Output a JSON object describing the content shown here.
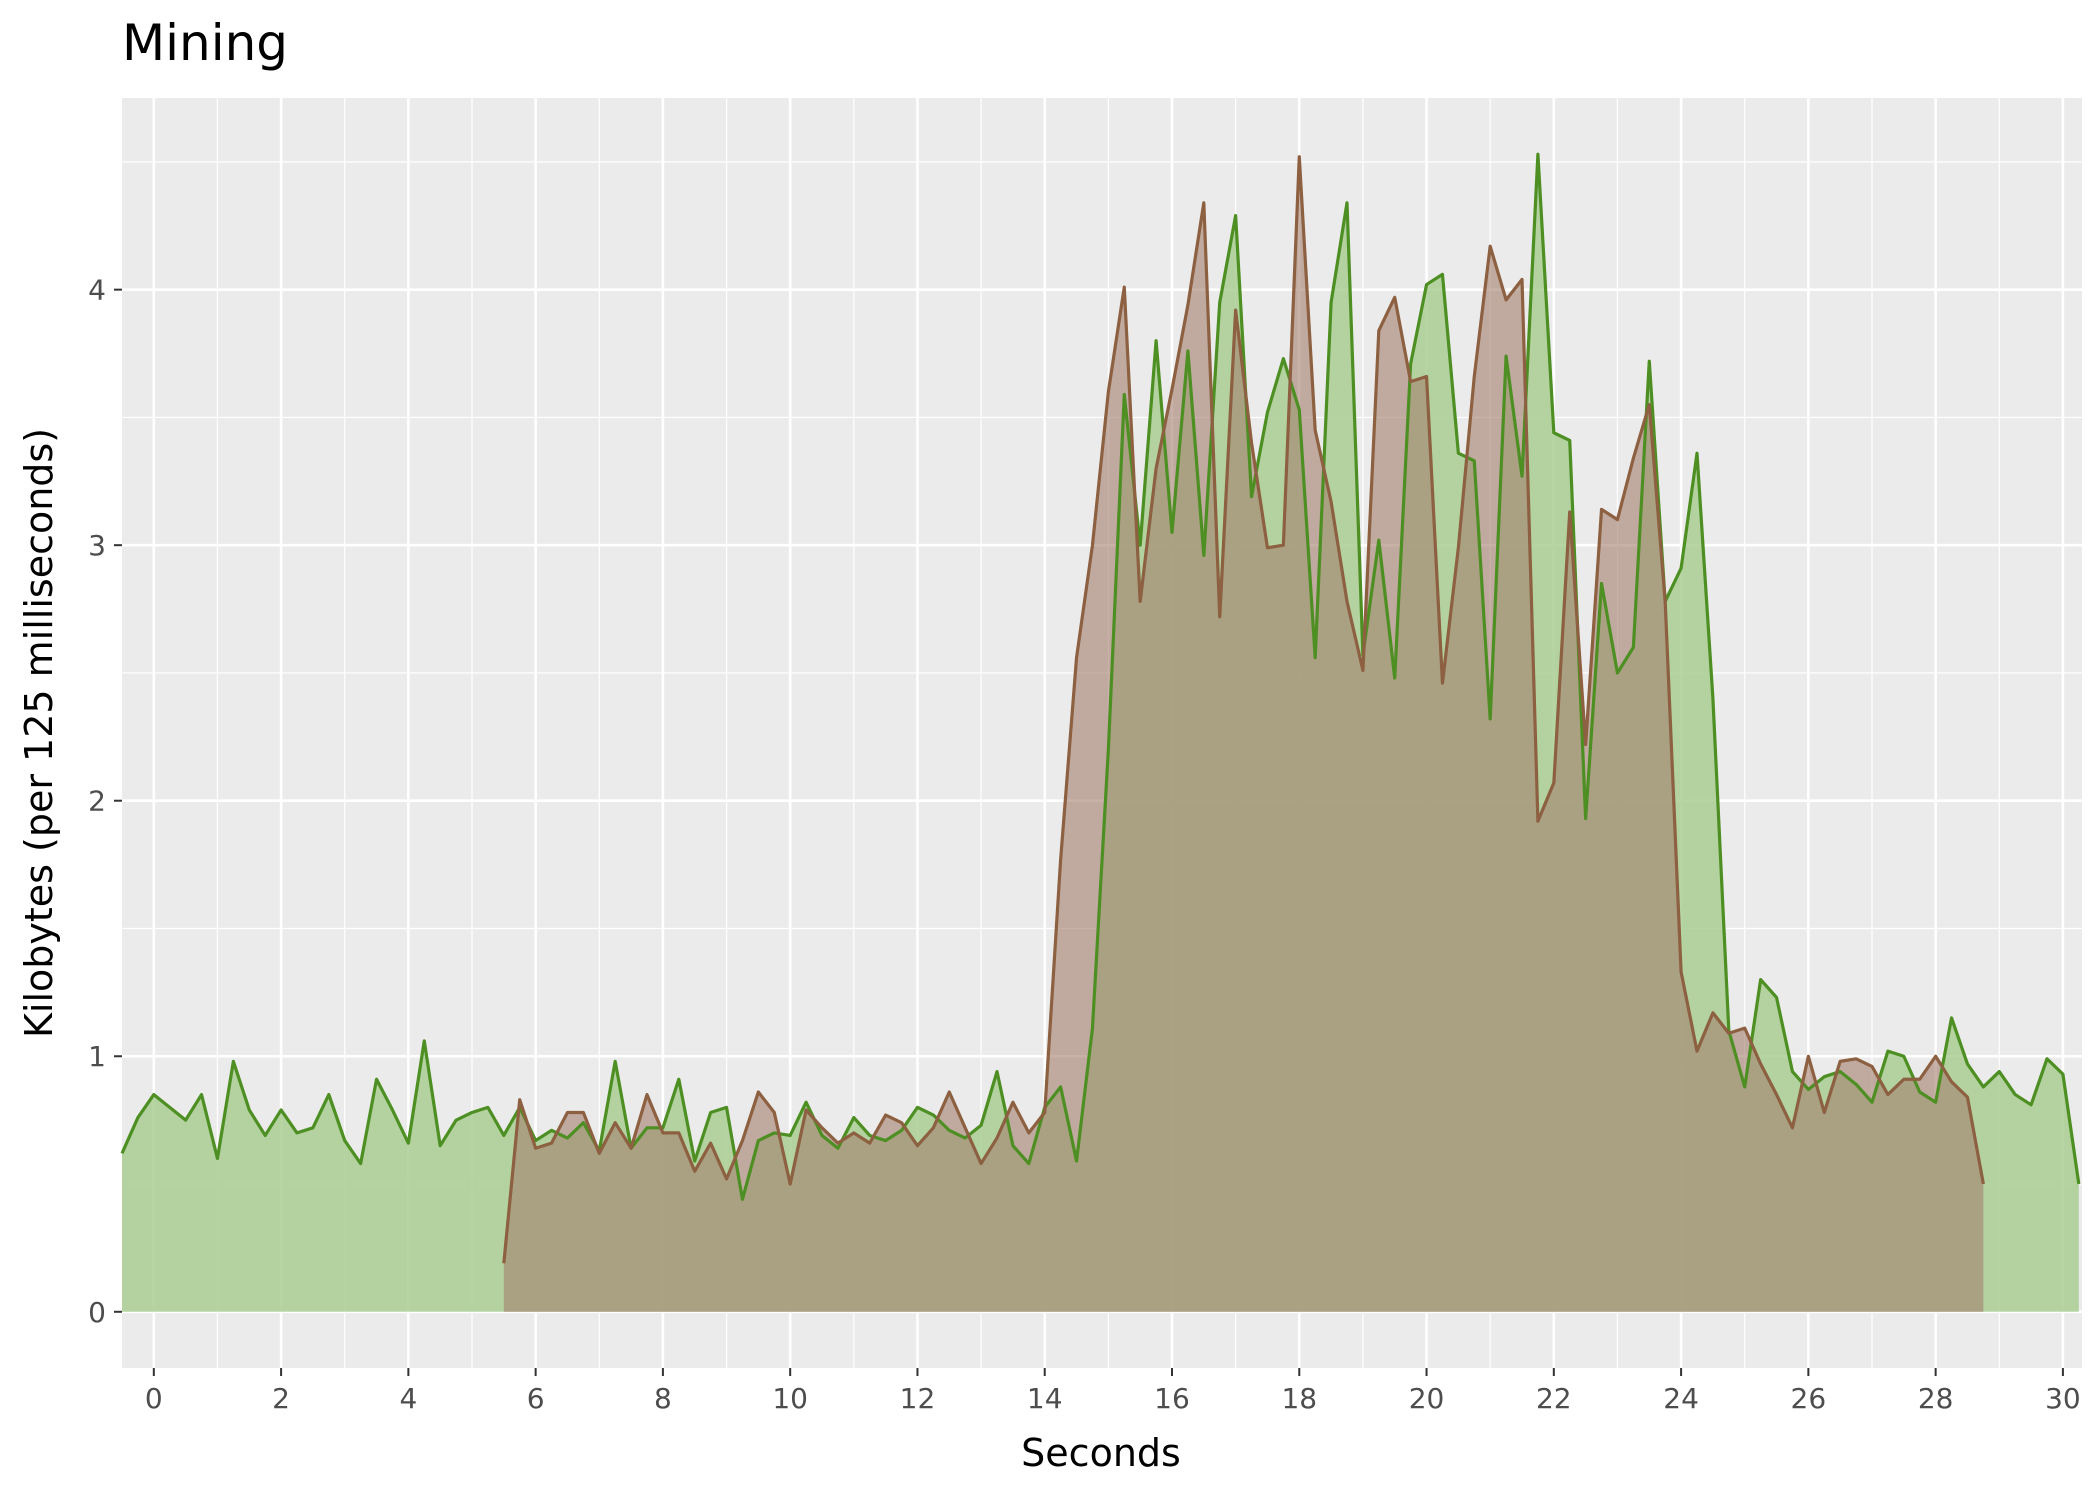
{
  "chart_data": {
    "type": "area",
    "title": "Mining",
    "xlabel": "Seconds",
    "ylabel": "Kilobytes (per 125 milliseconds)",
    "xlim": [
      -0.5,
      30.3
    ],
    "ylim": [
      -0.22,
      4.75
    ],
    "x_ticks": [
      0,
      2,
      4,
      6,
      8,
      10,
      12,
      14,
      16,
      18,
      20,
      22,
      24,
      26,
      28,
      30
    ],
    "y_ticks": [
      0,
      1,
      2,
      3,
      4
    ],
    "grid": true,
    "legend": "none",
    "series": [
      {
        "line_color": "#4d8f22",
        "fill_color": "#a6cc8f",
        "points": [
          [
            -0.5,
            0.62
          ],
          [
            -0.25,
            0.76
          ],
          [
            0,
            0.85
          ],
          [
            0.25,
            0.8
          ],
          [
            0.5,
            0.75
          ],
          [
            0.75,
            0.85
          ],
          [
            1,
            0.6
          ],
          [
            1.25,
            0.98
          ],
          [
            1.5,
            0.79
          ],
          [
            1.75,
            0.69
          ],
          [
            2,
            0.79
          ],
          [
            2.25,
            0.7
          ],
          [
            2.5,
            0.72
          ],
          [
            2.75,
            0.85
          ],
          [
            3,
            0.67
          ],
          [
            3.25,
            0.58
          ],
          [
            3.5,
            0.91
          ],
          [
            3.75,
            0.79
          ],
          [
            4,
            0.66
          ],
          [
            4.25,
            1.06
          ],
          [
            4.5,
            0.65
          ],
          [
            4.75,
            0.75
          ],
          [
            5,
            0.78
          ],
          [
            5.25,
            0.8
          ],
          [
            5.5,
            0.69
          ],
          [
            5.75,
            0.8
          ],
          [
            6,
            0.67
          ],
          [
            6.25,
            0.71
          ],
          [
            6.5,
            0.68
          ],
          [
            6.75,
            0.74
          ],
          [
            7,
            0.63
          ],
          [
            7.25,
            0.98
          ],
          [
            7.5,
            0.64
          ],
          [
            7.75,
            0.72
          ],
          [
            8,
            0.72
          ],
          [
            8.25,
            0.91
          ],
          [
            8.5,
            0.59
          ],
          [
            8.75,
            0.78
          ],
          [
            9,
            0.8
          ],
          [
            9.25,
            0.44
          ],
          [
            9.5,
            0.67
          ],
          [
            9.75,
            0.7
          ],
          [
            10,
            0.69
          ],
          [
            10.25,
            0.82
          ],
          [
            10.5,
            0.69
          ],
          [
            10.75,
            0.64
          ],
          [
            11,
            0.76
          ],
          [
            11.25,
            0.69
          ],
          [
            11.5,
            0.67
          ],
          [
            11.75,
            0.71
          ],
          [
            12,
            0.8
          ],
          [
            12.25,
            0.77
          ],
          [
            12.5,
            0.71
          ],
          [
            12.75,
            0.68
          ],
          [
            13,
            0.73
          ],
          [
            13.25,
            0.94
          ],
          [
            13.5,
            0.65
          ],
          [
            13.75,
            0.58
          ],
          [
            14,
            0.8
          ],
          [
            14.25,
            0.88
          ],
          [
            14.5,
            0.59
          ],
          [
            14.75,
            1.11
          ],
          [
            15,
            2.2
          ],
          [
            15.25,
            3.59
          ],
          [
            15.5,
            3.0
          ],
          [
            15.75,
            3.8
          ],
          [
            16,
            3.05
          ],
          [
            16.25,
            3.76
          ],
          [
            16.5,
            2.96
          ],
          [
            16.75,
            3.95
          ],
          [
            17,
            4.29
          ],
          [
            17.25,
            3.19
          ],
          [
            17.5,
            3.52
          ],
          [
            17.75,
            3.73
          ],
          [
            18,
            3.53
          ],
          [
            18.25,
            2.56
          ],
          [
            18.5,
            3.95
          ],
          [
            18.75,
            4.34
          ],
          [
            19,
            2.57
          ],
          [
            19.25,
            3.02
          ],
          [
            19.5,
            2.48
          ],
          [
            19.75,
            3.71
          ],
          [
            20,
            4.02
          ],
          [
            20.25,
            4.06
          ],
          [
            20.5,
            3.36
          ],
          [
            20.75,
            3.33
          ],
          [
            21,
            2.32
          ],
          [
            21.25,
            3.74
          ],
          [
            21.5,
            3.27
          ],
          [
            21.75,
            4.53
          ],
          [
            22,
            3.44
          ],
          [
            22.25,
            3.41
          ],
          [
            22.5,
            1.93
          ],
          [
            22.75,
            2.85
          ],
          [
            23,
            2.5
          ],
          [
            23.25,
            2.6
          ],
          [
            23.5,
            3.72
          ],
          [
            23.75,
            2.78
          ],
          [
            24,
            2.91
          ],
          [
            24.25,
            3.36
          ],
          [
            24.5,
            2.4
          ],
          [
            24.75,
            1.1
          ],
          [
            25,
            0.88
          ],
          [
            25.25,
            1.3
          ],
          [
            25.5,
            1.23
          ],
          [
            25.75,
            0.94
          ],
          [
            26,
            0.87
          ],
          [
            26.25,
            0.92
          ],
          [
            26.5,
            0.94
          ],
          [
            26.75,
            0.89
          ],
          [
            27,
            0.82
          ],
          [
            27.25,
            1.02
          ],
          [
            27.5,
            1.0
          ],
          [
            27.75,
            0.86
          ],
          [
            28,
            0.82
          ],
          [
            28.25,
            1.15
          ],
          [
            28.5,
            0.97
          ],
          [
            28.75,
            0.88
          ],
          [
            29,
            0.94
          ],
          [
            29.25,
            0.85
          ],
          [
            29.5,
            0.81
          ],
          [
            29.75,
            0.99
          ],
          [
            30,
            0.93
          ],
          [
            30.25,
            0.5
          ]
        ]
      },
      {
        "line_color": "#8c6040",
        "fill_color": "#a47e6e",
        "points": [
          [
            5.5,
            0.19
          ],
          [
            5.75,
            0.83
          ],
          [
            6,
            0.64
          ],
          [
            6.25,
            0.66
          ],
          [
            6.5,
            0.78
          ],
          [
            6.75,
            0.78
          ],
          [
            7,
            0.62
          ],
          [
            7.25,
            0.74
          ],
          [
            7.5,
            0.64
          ],
          [
            7.75,
            0.85
          ],
          [
            8,
            0.7
          ],
          [
            8.25,
            0.7
          ],
          [
            8.5,
            0.55
          ],
          [
            8.75,
            0.66
          ],
          [
            9,
            0.52
          ],
          [
            9.25,
            0.67
          ],
          [
            9.5,
            0.86
          ],
          [
            9.75,
            0.78
          ],
          [
            10,
            0.5
          ],
          [
            10.25,
            0.79
          ],
          [
            10.5,
            0.72
          ],
          [
            10.75,
            0.66
          ],
          [
            11,
            0.7
          ],
          [
            11.25,
            0.66
          ],
          [
            11.5,
            0.77
          ],
          [
            11.75,
            0.74
          ],
          [
            12,
            0.65
          ],
          [
            12.25,
            0.72
          ],
          [
            12.5,
            0.86
          ],
          [
            12.75,
            0.72
          ],
          [
            13,
            0.58
          ],
          [
            13.25,
            0.68
          ],
          [
            13.5,
            0.82
          ],
          [
            13.75,
            0.7
          ],
          [
            14,
            0.78
          ],
          [
            14.25,
            1.77
          ],
          [
            14.5,
            2.56
          ],
          [
            14.75,
            3.0
          ],
          [
            15,
            3.6
          ],
          [
            15.25,
            4.01
          ],
          [
            15.5,
            2.78
          ],
          [
            15.75,
            3.3
          ],
          [
            16,
            3.61
          ],
          [
            16.25,
            3.94
          ],
          [
            16.5,
            4.34
          ],
          [
            16.75,
            2.72
          ],
          [
            17,
            3.92
          ],
          [
            17.25,
            3.4
          ],
          [
            17.5,
            2.99
          ],
          [
            17.75,
            3.0
          ],
          [
            18,
            4.52
          ],
          [
            18.25,
            3.45
          ],
          [
            18.5,
            3.17
          ],
          [
            18.75,
            2.78
          ],
          [
            19,
            2.51
          ],
          [
            19.25,
            3.84
          ],
          [
            19.5,
            3.97
          ],
          [
            19.75,
            3.64
          ],
          [
            20,
            3.66
          ],
          [
            20.25,
            2.46
          ],
          [
            20.5,
            2.99
          ],
          [
            20.75,
            3.66
          ],
          [
            21,
            4.17
          ],
          [
            21.25,
            3.96
          ],
          [
            21.5,
            4.04
          ],
          [
            21.75,
            1.92
          ],
          [
            22,
            2.07
          ],
          [
            22.25,
            3.13
          ],
          [
            22.5,
            2.22
          ],
          [
            22.75,
            3.14
          ],
          [
            23,
            3.1
          ],
          [
            23.25,
            3.34
          ],
          [
            23.5,
            3.55
          ],
          [
            23.75,
            2.78
          ],
          [
            24,
            1.33
          ],
          [
            24.25,
            1.02
          ],
          [
            24.5,
            1.17
          ],
          [
            24.75,
            1.09
          ],
          [
            25,
            1.11
          ],
          [
            25.25,
            0.97
          ],
          [
            25.5,
            0.85
          ],
          [
            25.75,
            0.72
          ],
          [
            26,
            1.0
          ],
          [
            26.25,
            0.78
          ],
          [
            26.5,
            0.98
          ],
          [
            26.75,
            0.99
          ],
          [
            27,
            0.96
          ],
          [
            27.25,
            0.85
          ],
          [
            27.5,
            0.91
          ],
          [
            27.75,
            0.91
          ],
          [
            28,
            1.0
          ],
          [
            28.25,
            0.9
          ],
          [
            28.5,
            0.84
          ],
          [
            28.75,
            0.5
          ]
        ]
      }
    ]
  }
}
